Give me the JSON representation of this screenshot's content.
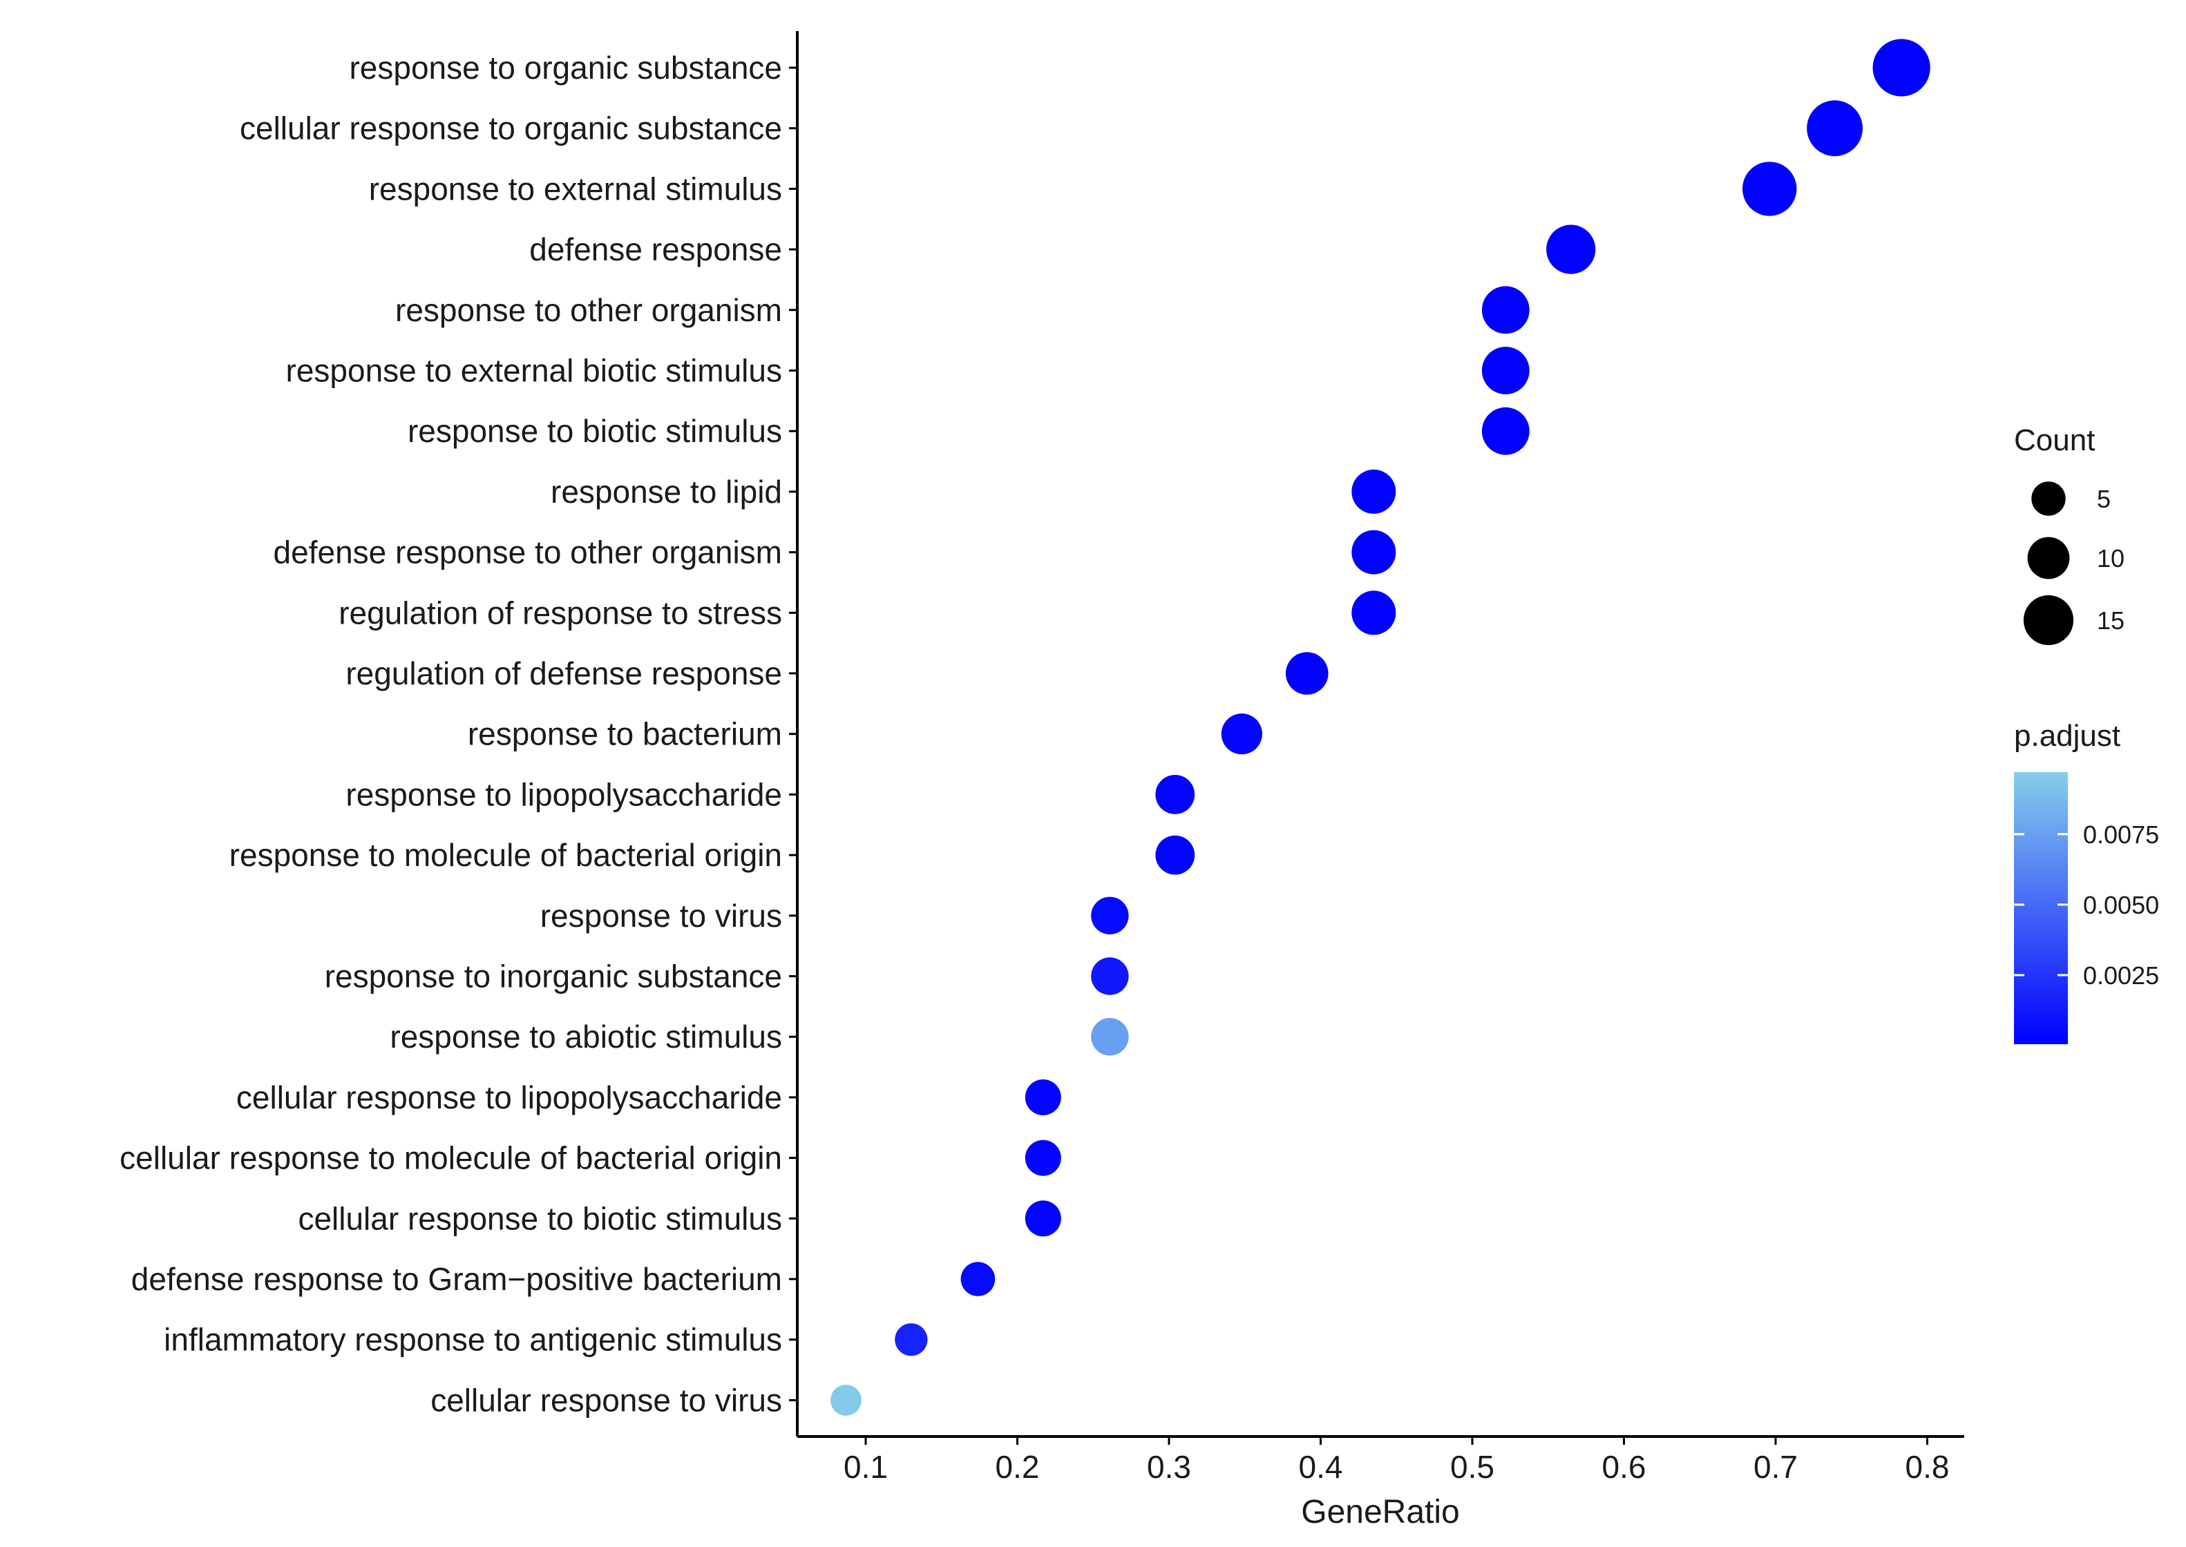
{
  "chart_data": {
    "type": "scatter",
    "xlabel": "GeneRatio",
    "ylabel": "",
    "title": "",
    "xlim": [
      0.05,
      0.815
    ],
    "xticks": [
      0.1,
      0.2,
      0.3,
      0.4,
      0.5,
      0.6,
      0.7,
      0.8
    ],
    "xtick_labels": [
      "0.1",
      "0.2",
      "0.3",
      "0.4",
      "0.5",
      "0.6",
      "0.7",
      "0.8"
    ],
    "grid": false,
    "legend_placement": "right",
    "categories": [
      "response to organic substance",
      "cellular response to organic substance",
      "response to external stimulus",
      "defense response",
      "response to other organism",
      "response to external biotic stimulus",
      "response to biotic stimulus",
      "response to lipid",
      "defense response to other organism",
      "regulation of response to stress",
      "regulation of defense response",
      "response to bacterium",
      "response to lipopolysaccharide",
      "response to molecule of bacterial origin",
      "response to virus",
      "response to inorganic substance",
      "response to abiotic stimulus",
      "cellular response to lipopolysaccharide",
      "cellular response to molecule of bacterial origin",
      "cellular response to biotic stimulus",
      "defense response to Gram−positive bacterium",
      "inflammatory response to antigenic stimulus",
      "cellular response to virus"
    ],
    "gene_ratio": [
      0.783,
      0.739,
      0.696,
      0.565,
      0.522,
      0.522,
      0.522,
      0.435,
      0.435,
      0.435,
      0.391,
      0.348,
      0.304,
      0.304,
      0.261,
      0.261,
      0.261,
      0.217,
      0.217,
      0.217,
      0.174,
      0.13,
      0.087
    ],
    "count": [
      18,
      17,
      16,
      13,
      12,
      12,
      12,
      10,
      10,
      10,
      9,
      8,
      7,
      7,
      6,
      6,
      6,
      5,
      5,
      5,
      4,
      3,
      2
    ],
    "p_adjust": [
      0.0001,
      0.0001,
      0.0001,
      0.0001,
      0.0001,
      0.0001,
      0.0001,
      0.0001,
      0.0001,
      0.0001,
      0.0002,
      0.0003,
      0.0003,
      0.0003,
      0.0005,
      0.0012,
      0.0075,
      0.0003,
      0.0003,
      0.0003,
      0.0005,
      0.0017,
      0.0095
    ],
    "size_legend": {
      "title": "Count",
      "values": [
        5,
        10,
        15
      ],
      "labels": [
        "5",
        "10",
        "15"
      ]
    },
    "color_legend": {
      "title": "p.adjust",
      "range": [
        5e-05,
        0.0097
      ],
      "ticks": [
        0.0025,
        0.005,
        0.0075
      ],
      "tick_labels": [
        "0.0025",
        "0.0050",
        "0.0075"
      ],
      "low_color": "#0000ff",
      "high_color": "#87ceeb"
    }
  }
}
